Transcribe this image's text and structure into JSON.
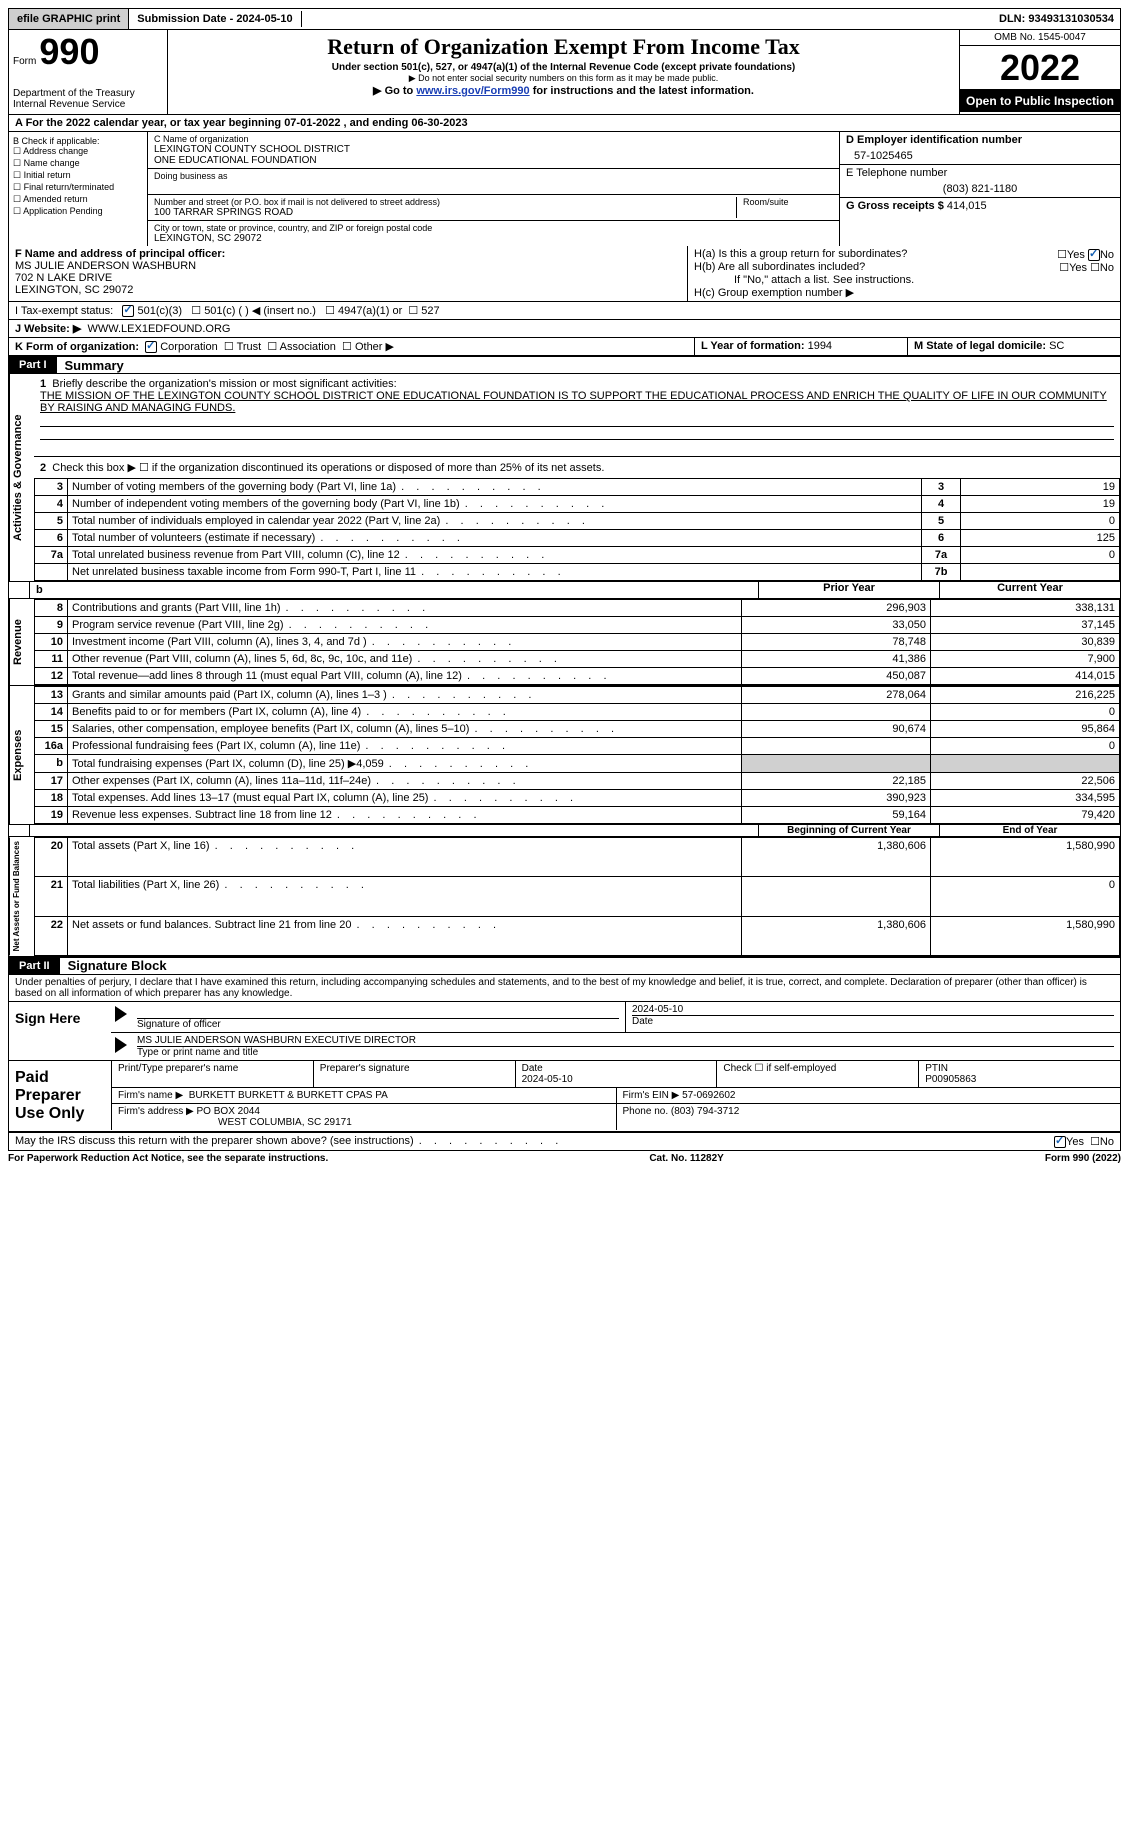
{
  "topbar": {
    "efile": "efile GRAPHIC print",
    "submission_label": "Submission Date - 2024-05-10",
    "dln": "DLN: 93493131030534"
  },
  "header": {
    "form_prefix": "Form",
    "form_number": "990",
    "dept": "Department of the Treasury Internal Revenue Service",
    "title": "Return of Organization Exempt From Income Tax",
    "subtitle": "Under section 501(c), 527, or 4947(a)(1) of the Internal Revenue Code (except private foundations)",
    "note1": "▶ Do not enter social security numbers on this form as it may be made public.",
    "note2_pre": "▶ Go to ",
    "note2_link": "www.irs.gov/Form990",
    "note2_post": " for instructions and the latest information.",
    "omb": "OMB No. 1545-0047",
    "year": "2022",
    "open": "Open to Public Inspection"
  },
  "lineA": "A For the 2022 calendar year, or tax year beginning 07-01-2022    , and ending 06-30-2023",
  "blockB": {
    "label": "B Check if applicable:",
    "items": [
      "Address change",
      "Name change",
      "Initial return",
      "Final return/terminated",
      "Amended return",
      "Application Pending"
    ]
  },
  "blockC": {
    "name_label": "C Name of organization",
    "name1": "LEXINGTON COUNTY SCHOOL DISTRICT",
    "name2": "ONE EDUCATIONAL FOUNDATION",
    "dba": "Doing business as",
    "addr_label": "Number and street (or P.O. box if mail is not delivered to street address)",
    "room": "Room/suite",
    "addr": "100 TARRAR SPRINGS ROAD",
    "city_label": "City or town, state or province, country, and ZIP or foreign postal code",
    "city": "LEXINGTON, SC  29072"
  },
  "blockD": {
    "label": "D Employer identification number",
    "value": "57-1025465"
  },
  "blockE": {
    "label": "E Telephone number",
    "value": "(803) 821-1180"
  },
  "blockG": {
    "label": "G Gross receipts $",
    "value": "414,015"
  },
  "blockF": {
    "label": "F Name and address of principal officer:",
    "name": "MS JULIE ANDERSON WASHBURN",
    "addr1": "702 N LAKE DRIVE",
    "addr2": "LEXINGTON, SC  29072"
  },
  "blockH": {
    "a": "H(a)  Is this a group return for subordinates?",
    "b": "H(b)  Are all subordinates included?",
    "bnote": "If \"No,\" attach a list. See instructions.",
    "c": "H(c)  Group exemption number ▶"
  },
  "lineI": {
    "label": "I   Tax-exempt status:",
    "opt1": "501(c)(3)",
    "opt2": "501(c) (  ) ◀ (insert no.)",
    "opt3": "4947(a)(1) or",
    "opt4": "527"
  },
  "lineJ": {
    "label": "J   Website: ▶",
    "value": "WWW.LEX1EDFOUND.ORG"
  },
  "lineK": {
    "label": "K Form of organization:",
    "opts": [
      "Corporation",
      "Trust",
      "Association",
      "Other ▶"
    ]
  },
  "lineL": {
    "label": "L Year of formation:",
    "value": "1994"
  },
  "lineM": {
    "label": "M State of legal domicile:",
    "value": "SC"
  },
  "partI": {
    "label": "Part I",
    "title": "Summary",
    "q1": "Briefly describe the organization's mission or most significant activities:",
    "mission": "THE MISSION OF THE LEXINGTON COUNTY SCHOOL DISTRICT ONE EDUCATIONAL FOUNDATION IS TO SUPPORT THE EDUCATIONAL PROCESS AND ENRICH THE QUALITY OF LIFE IN OUR COMMUNITY BY RAISING AND MANAGING FUNDS.",
    "q2": "Check this box ▶ ☐ if the organization discontinued its operations or disposed of more than 25% of its net assets.",
    "prior_year": "Prior Year",
    "current_year": "Current Year",
    "begin_year": "Beginning of Current Year",
    "end_year": "End of Year",
    "rows_ag": [
      {
        "n": "3",
        "d": "Number of voting members of the governing body (Part VI, line 1a)",
        "box": "3",
        "v": "19"
      },
      {
        "n": "4",
        "d": "Number of independent voting members of the governing body (Part VI, line 1b)",
        "box": "4",
        "v": "19"
      },
      {
        "n": "5",
        "d": "Total number of individuals employed in calendar year 2022 (Part V, line 2a)",
        "box": "5",
        "v": "0"
      },
      {
        "n": "6",
        "d": "Total number of volunteers (estimate if necessary)",
        "box": "6",
        "v": "125"
      },
      {
        "n": "7a",
        "d": "Total unrelated business revenue from Part VIII, column (C), line 12",
        "box": "7a",
        "v": "0"
      },
      {
        "n": "",
        "d": "Net unrelated business taxable income from Form 990-T, Part I, line 11",
        "box": "7b",
        "v": ""
      }
    ],
    "rows_rev": [
      {
        "n": "8",
        "d": "Contributions and grants (Part VIII, line 1h)",
        "p": "296,903",
        "c": "338,131"
      },
      {
        "n": "9",
        "d": "Program service revenue (Part VIII, line 2g)",
        "p": "33,050",
        "c": "37,145"
      },
      {
        "n": "10",
        "d": "Investment income (Part VIII, column (A), lines 3, 4, and 7d )",
        "p": "78,748",
        "c": "30,839"
      },
      {
        "n": "11",
        "d": "Other revenue (Part VIII, column (A), lines 5, 6d, 8c, 9c, 10c, and 11e)",
        "p": "41,386",
        "c": "7,900"
      },
      {
        "n": "12",
        "d": "Total revenue—add lines 8 through 11 (must equal Part VIII, column (A), line 12)",
        "p": "450,087",
        "c": "414,015"
      }
    ],
    "rows_exp": [
      {
        "n": "13",
        "d": "Grants and similar amounts paid (Part IX, column (A), lines 1–3 )",
        "p": "278,064",
        "c": "216,225"
      },
      {
        "n": "14",
        "d": "Benefits paid to or for members (Part IX, column (A), line 4)",
        "p": "",
        "c": "0"
      },
      {
        "n": "15",
        "d": "Salaries, other compensation, employee benefits (Part IX, column (A), lines 5–10)",
        "p": "90,674",
        "c": "95,864"
      },
      {
        "n": "16a",
        "d": "Professional fundraising fees (Part IX, column (A), line 11e)",
        "p": "",
        "c": "0"
      },
      {
        "n": "b",
        "d": "Total fundraising expenses (Part IX, column (D), line 25) ▶4,059",
        "p": "shaded",
        "c": "shaded"
      },
      {
        "n": "17",
        "d": "Other expenses (Part IX, column (A), lines 11a–11d, 11f–24e)",
        "p": "22,185",
        "c": "22,506"
      },
      {
        "n": "18",
        "d": "Total expenses. Add lines 13–17 (must equal Part IX, column (A), line 25)",
        "p": "390,923",
        "c": "334,595"
      },
      {
        "n": "19",
        "d": "Revenue less expenses. Subtract line 18 from line 12",
        "p": "59,164",
        "c": "79,420"
      }
    ],
    "rows_na": [
      {
        "n": "20",
        "d": "Total assets (Part X, line 16)",
        "p": "1,380,606",
        "c": "1,580,990"
      },
      {
        "n": "21",
        "d": "Total liabilities (Part X, line 26)",
        "p": "",
        "c": "0"
      },
      {
        "n": "22",
        "d": "Net assets or fund balances. Subtract line 21 from line 20",
        "p": "1,380,606",
        "c": "1,580,990"
      }
    ],
    "vert_ag": "Activities & Governance",
    "vert_rev": "Revenue",
    "vert_exp": "Expenses",
    "vert_na": "Net Assets or Fund Balances"
  },
  "partII": {
    "label": "Part II",
    "title": "Signature Block",
    "decl": "Under penalties of perjury, I declare that I have examined this return, including accompanying schedules and statements, and to the best of my knowledge and belief, it is true, correct, and complete. Declaration of preparer (other than officer) is based on all information of which preparer has any knowledge.",
    "sign_here": "Sign Here",
    "sig_officer": "Signature of officer",
    "sig_date": "2024-05-10",
    "date_lbl": "Date",
    "officer_name": "MS JULIE ANDERSON WASHBURN  EXECUTIVE DIRECTOR",
    "officer_type": "Type or print name and title",
    "paid": "Paid Preparer Use Only",
    "prep_name_lbl": "Print/Type preparer's name",
    "prep_sig_lbl": "Preparer's signature",
    "prep_date_lbl": "Date",
    "prep_date": "2024-05-10",
    "self_emp": "Check ☐ if self-employed",
    "ptin_lbl": "PTIN",
    "ptin": "P00905863",
    "firm_name_lbl": "Firm's name    ▶",
    "firm_name": "BURKETT BURKETT & BURKETT CPAS PA",
    "firm_ein_lbl": "Firm's EIN ▶",
    "firm_ein": "57-0692602",
    "firm_addr_lbl": "Firm's address ▶",
    "firm_addr1": "PO BOX 2044",
    "firm_addr2": "WEST COLUMBIA, SC  29171",
    "phone_lbl": "Phone no.",
    "phone": "(803) 794-3712",
    "discuss": "May the IRS discuss this return with the preparer shown above? (see instructions)"
  },
  "footer": {
    "left": "For Paperwork Reduction Act Notice, see the separate instructions.",
    "mid": "Cat. No. 11282Y",
    "right": "Form 990 (2022)"
  }
}
